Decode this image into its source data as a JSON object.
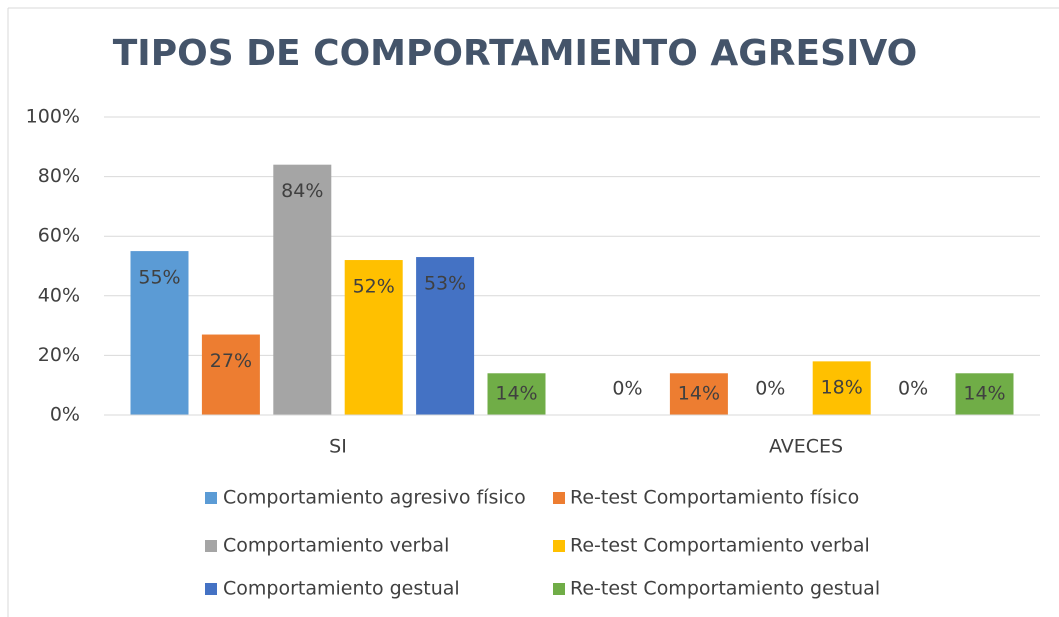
{
  "chart_data": {
    "type": "bar",
    "title": "TIPOS DE COMPORTAMIENTO AGRESIVO",
    "categories": [
      "SI",
      "AVECES"
    ],
    "series": [
      {
        "name": "Comportamiento agresivo físico",
        "color": "#5b9bd5",
        "values": [
          55,
          0
        ],
        "value_labels": [
          "55%",
          "0%"
        ]
      },
      {
        "name": "Re-test Comportamiento físico",
        "color": "#ed7d31",
        "values": [
          27,
          14
        ],
        "value_labels": [
          "27%",
          "14%"
        ]
      },
      {
        "name": "Comportamiento verbal",
        "color": "#a5a5a5",
        "values": [
          84,
          0
        ],
        "value_labels": [
          "84%",
          "0%"
        ]
      },
      {
        "name": "Re-test Comportamiento verbal",
        "color": "#ffc000",
        "values": [
          52,
          18
        ],
        "value_labels": [
          "52%",
          "18%"
        ]
      },
      {
        "name": "Comportamiento gestual",
        "color": "#4472c4",
        "values": [
          53,
          0
        ],
        "value_labels": [
          "53%",
          "0%"
        ]
      },
      {
        "name": "Re-test Comportamiento gestual",
        "color": "#70ad47",
        "values": [
          14,
          14
        ],
        "value_labels": [
          "14%",
          "14%"
        ]
      }
    ],
    "ylim": [
      0,
      100
    ],
    "yticks": [
      {
        "value": 0,
        "label": "0%"
      },
      {
        "value": 20,
        "label": "20%"
      },
      {
        "value": 40,
        "label": "40%"
      },
      {
        "value": 60,
        "label": "60%"
      },
      {
        "value": 80,
        "label": "80%"
      },
      {
        "value": 100,
        "label": "100%"
      }
    ],
    "grid": true,
    "legend": "bottom"
  }
}
